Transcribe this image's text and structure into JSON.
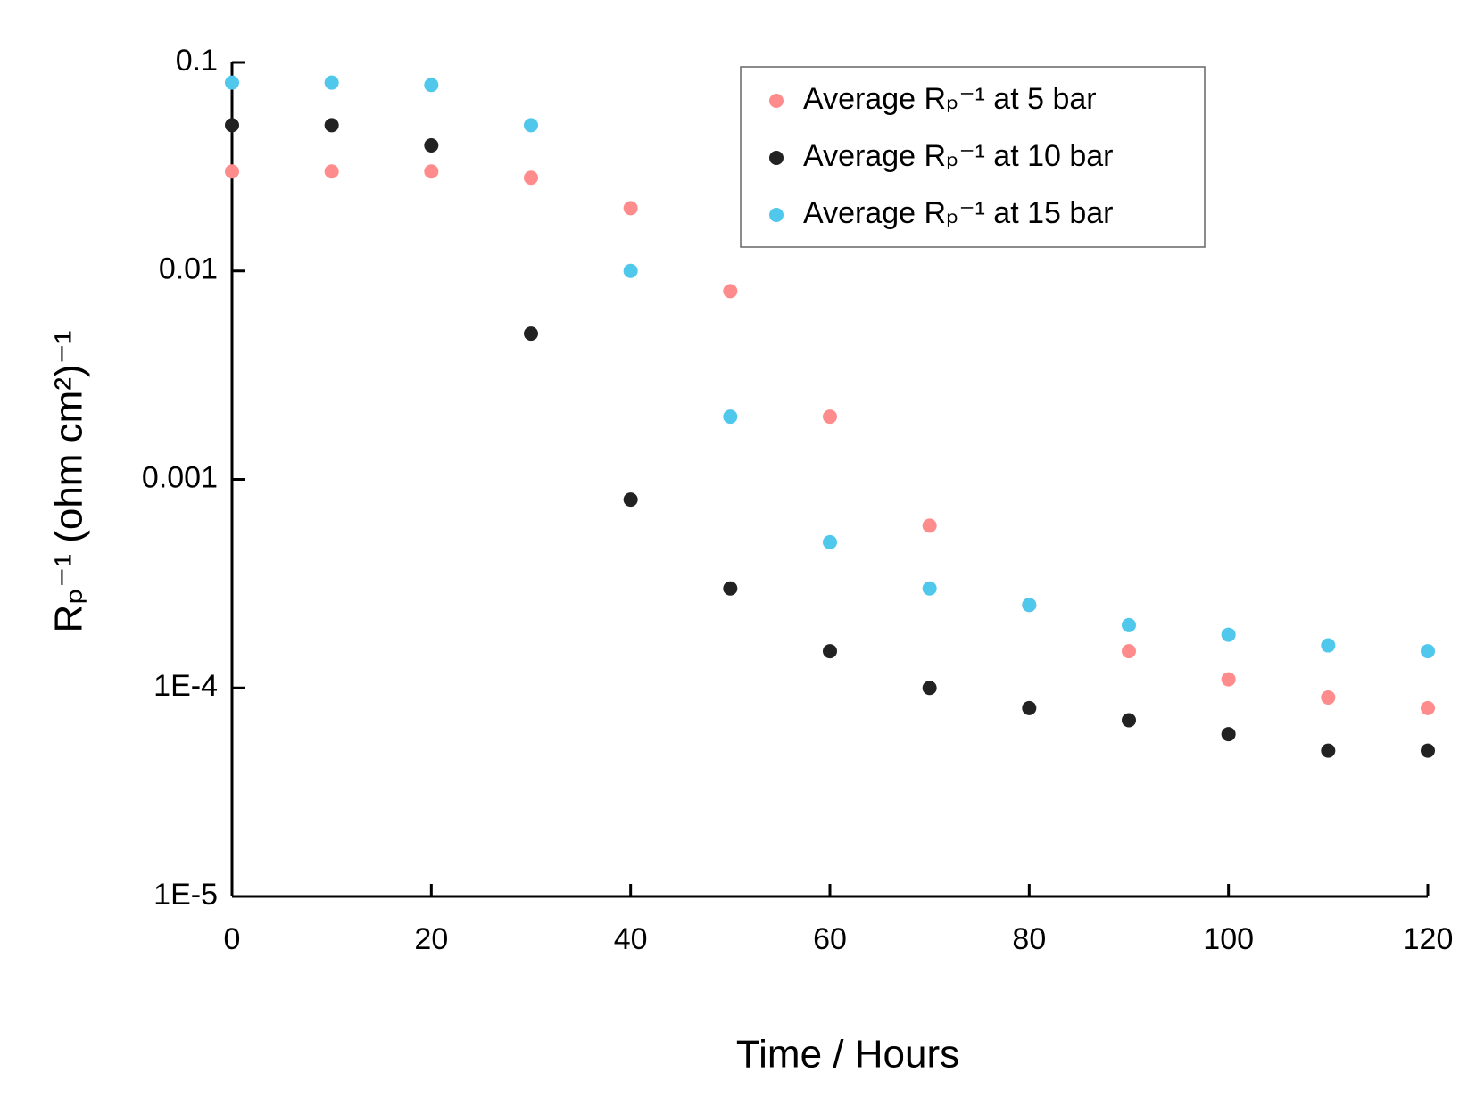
{
  "chart_data": {
    "type": "scatter",
    "x_label": "Time / Hours",
    "y_label": "Rₚ⁻¹ (ohm cm²)⁻¹",
    "x": [
      0,
      10,
      20,
      30,
      40,
      50,
      60,
      70,
      80,
      90,
      100,
      110,
      120
    ],
    "series": [
      {
        "name": "Average Rₚ⁻¹ at 5 bar",
        "color": "#ff8c8c",
        "values": [
          0.03,
          0.03,
          0.03,
          0.028,
          0.02,
          0.008,
          0.002,
          0.0006,
          0.00025,
          0.00015,
          0.00011,
          9e-05,
          8e-05
        ]
      },
      {
        "name": "Average Rₚ⁻¹ at 10 bar",
        "color": "#222222",
        "values": [
          0.05,
          0.05,
          0.04,
          0.005,
          0.0008,
          0.0003,
          0.00015,
          0.0001,
          8e-05,
          7e-05,
          6e-05,
          5e-05,
          5e-05
        ]
      },
      {
        "name": "Average Rₚ⁻¹ at 15 bar",
        "color": "#4fc8ec",
        "values": [
          0.08,
          0.08,
          0.078,
          0.05,
          0.01,
          0.002,
          0.0005,
          0.0003,
          0.00025,
          0.0002,
          0.00018,
          0.00016,
          0.00015
        ]
      }
    ],
    "xlim": [
      0,
      120
    ],
    "xticks": [
      0,
      20,
      40,
      60,
      80,
      100,
      120
    ],
    "ylim": [
      1e-05,
      0.1
    ],
    "yticks": [
      {
        "value": 1e-05,
        "label": "1E-5"
      },
      {
        "value": 0.0001,
        "label": "1E-4"
      },
      0.001,
      0.01,
      0.1
    ],
    "log_y": true,
    "grid": false,
    "legend": "top"
  }
}
